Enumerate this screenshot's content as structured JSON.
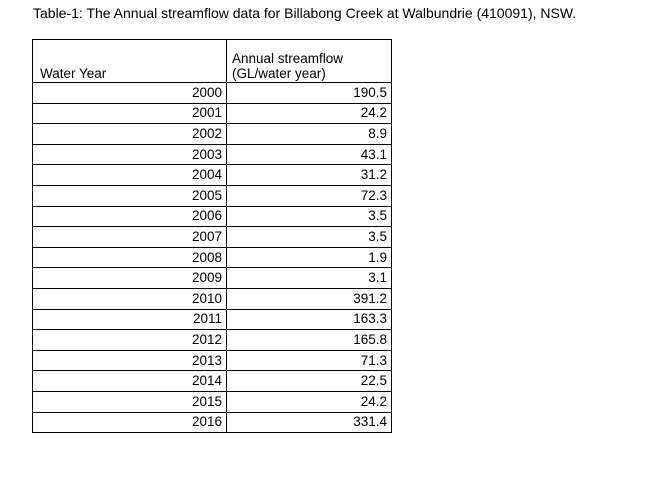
{
  "caption": "Table-1: The Annual streamflow data for Billabong Creek at Walbundrie (410091), NSW.",
  "table": {
    "headers": {
      "water_year": "Water Year",
      "streamflow_line1": "Annual streamflow",
      "streamflow_line2": "(GL/water year)"
    },
    "rows": [
      {
        "year": "2000",
        "flow": "190.5"
      },
      {
        "year": "2001",
        "flow": "24.2"
      },
      {
        "year": "2002",
        "flow": "8.9"
      },
      {
        "year": "2003",
        "flow": "43.1"
      },
      {
        "year": "2004",
        "flow": "31.2"
      },
      {
        "year": "2005",
        "flow": "72.3"
      },
      {
        "year": "2006",
        "flow": "3.5"
      },
      {
        "year": "2007",
        "flow": "3.5"
      },
      {
        "year": "2008",
        "flow": "1.9"
      },
      {
        "year": "2009",
        "flow": "3.1"
      },
      {
        "year": "2010",
        "flow": "391.2"
      },
      {
        "year": "2011",
        "flow": "163.3"
      },
      {
        "year": "2012",
        "flow": "165.8"
      },
      {
        "year": "2013",
        "flow": "71.3"
      },
      {
        "year": "2014",
        "flow": "22.5"
      },
      {
        "year": "2015",
        "flow": "24.2"
      },
      {
        "year": "2016",
        "flow": "331.4"
      }
    ]
  }
}
